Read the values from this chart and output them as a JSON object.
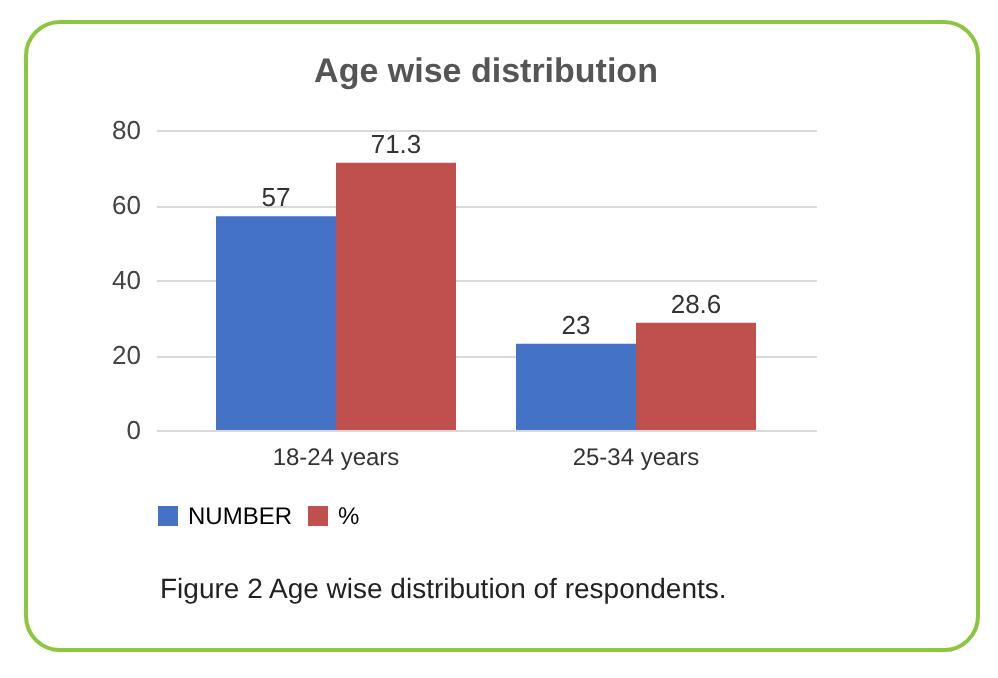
{
  "chart_data": {
    "type": "bar",
    "title": "Age wise distribution",
    "categories": [
      "18-24 years",
      "25-34 years"
    ],
    "series": [
      {
        "name": "NUMBER",
        "color": "#4472c4",
        "values": [
          57,
          23
        ]
      },
      {
        "name": "%",
        "color": "#c0504d",
        "values": [
          71.3,
          28.6
        ]
      }
    ],
    "ylim": [
      0,
      80
    ],
    "yticks": [
      0,
      20,
      40,
      60,
      80
    ],
    "grid": "y",
    "legend": "bottom",
    "data_labels": true,
    "annotations": [
      "Figure 2 Age wise distribution of respondents."
    ]
  }
}
